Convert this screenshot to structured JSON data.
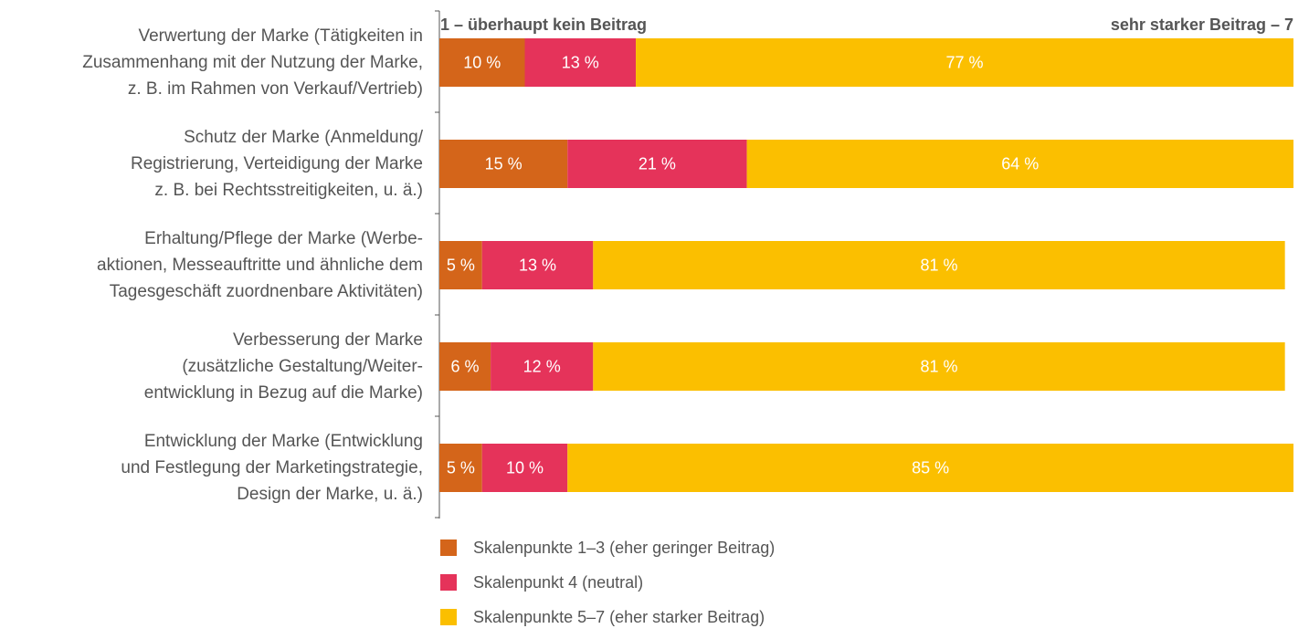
{
  "chart_data": {
    "type": "stacked-bar-horizontal",
    "annotations": [
      "1 – überhaupt kein Beitrag",
      "sehr starker Beitrag – 7"
    ],
    "categories": [
      "Verwertung der Marke (Tätigkeiten in\nZusammenhang mit der Nutzung der Marke,\nz. B. im Rahmen von Verkauf/Vertrieb)",
      "Schutz der Marke (Anmeldung/\nRegistrierung, Verteidigung der Marke\nz. B. bei Rechtsstreitigkeiten, u. ä.)",
      "Erhaltung/Pflege der Marke (Werbe-\naktionen, Messeauftritte und ähnliche dem\nTagesgeschäft zuordnenbare Aktivitäten)",
      "Verbesserung der Marke\n(zusätzliche Gestaltung/Weiter-\nentwicklung in Bezug auf die Marke)",
      "Entwicklung der Marke (Entwicklung\nund Festlegung der Marketingstrategie,\nDesign der Marke, u. ä.)"
    ],
    "series": [
      {
        "name": "Skalenpunkte 1–3 (eher geringer Beitrag)",
        "color": "#d4651a",
        "values": [
          10,
          15,
          5,
          6,
          5
        ],
        "value_labels": [
          "10 %",
          "15 %",
          "5 %",
          "6 %",
          "5 %"
        ]
      },
      {
        "name": "Skalenpunkt 4 (neutral)",
        "color": "#e5335a",
        "values": [
          13,
          21,
          13,
          12,
          10
        ],
        "value_labels": [
          "13 %",
          "21 %",
          "13 %",
          "12 %",
          "10 %"
        ]
      },
      {
        "name": "Skalenpunkte 5–7 (eher starker Beitrag)",
        "color": "#fbbf00",
        "values": [
          77,
          64,
          81,
          81,
          85
        ],
        "value_labels": [
          "77 %",
          "64 %",
          "81 %",
          "81 %",
          "85 %"
        ]
      }
    ],
    "xlim": [
      0,
      100
    ]
  }
}
